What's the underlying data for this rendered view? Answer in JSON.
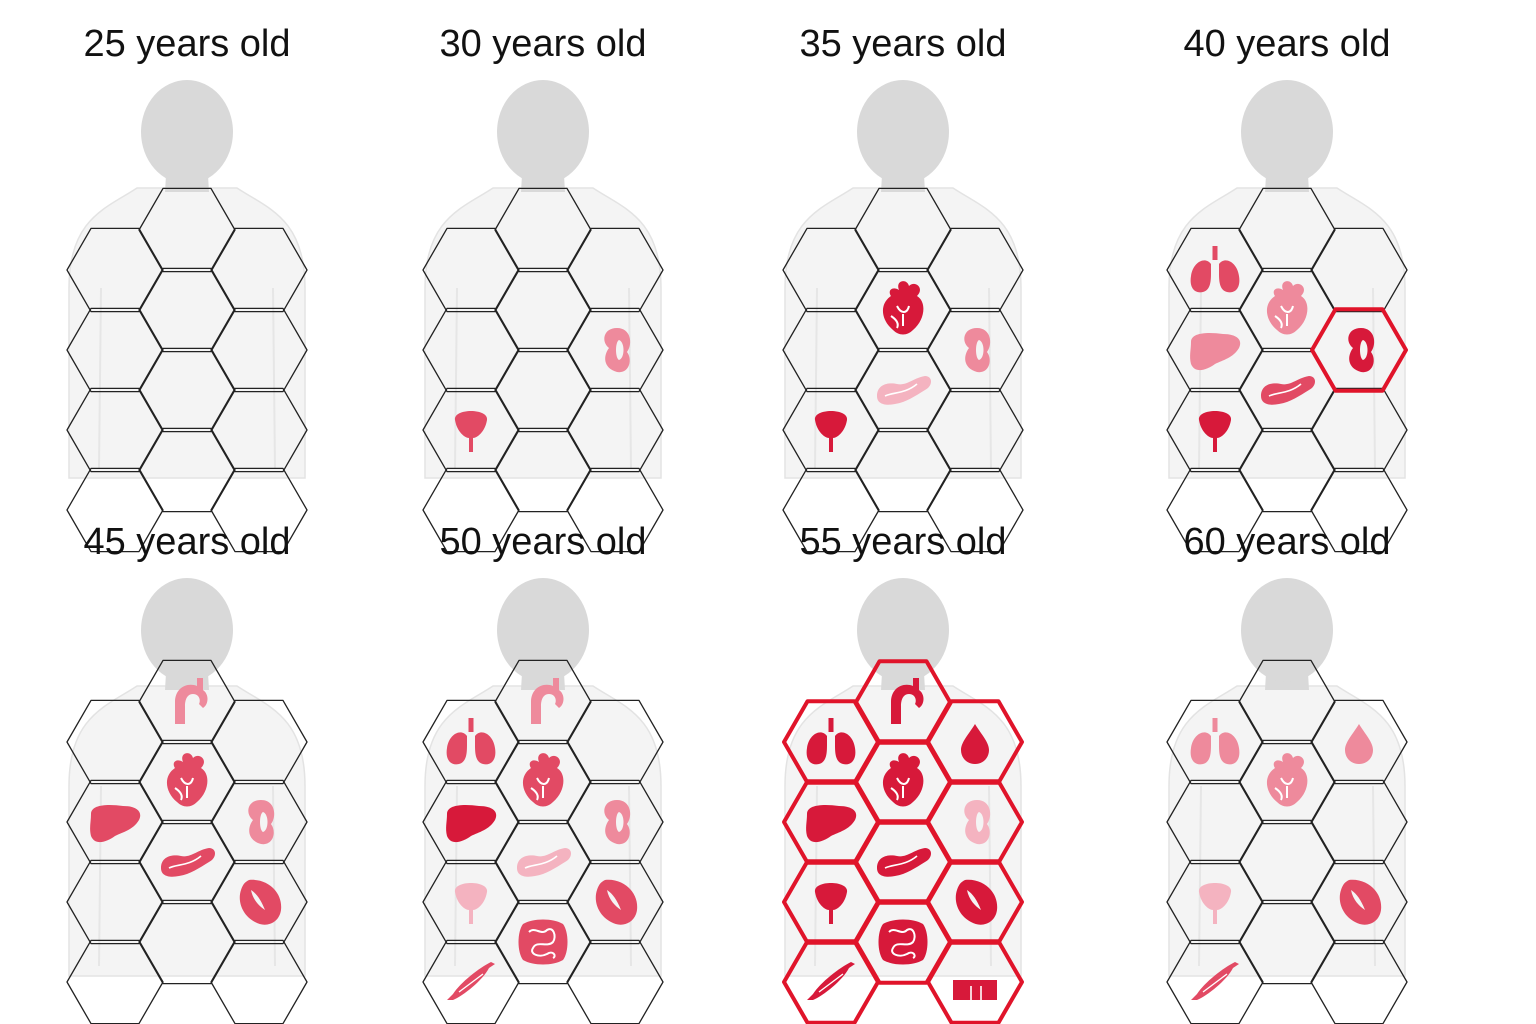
{
  "colors": {
    "organ_dark": "#d7193a",
    "organ_mid": "#e24a64",
    "organ_light": "#ee8a9c",
    "organ_pale": "#f4b3c0",
    "highlight": "#e0142a",
    "hex_stroke": "#222222",
    "silhouette": "#d9d9d9",
    "body_fill": "#f4f4f4"
  },
  "panels": [
    {
      "title": "25 years old",
      "highlighted_cells": [],
      "organs": []
    },
    {
      "title": "30 years old",
      "highlighted_cells": [],
      "organs": [
        {
          "cell": "mid-right",
          "organ": "kidney-icon",
          "shade": "organ_light"
        },
        {
          "cell": "lower-left",
          "organ": "bladder-icon",
          "shade": "organ_mid"
        }
      ]
    },
    {
      "title": "35 years old",
      "highlighted_cells": [],
      "organs": [
        {
          "cell": "upper-center",
          "organ": "heart-icon",
          "shade": "organ_dark"
        },
        {
          "cell": "mid-right",
          "organ": "kidney-icon",
          "shade": "organ_light"
        },
        {
          "cell": "mid-center",
          "organ": "pancreas-icon",
          "shade": "organ_pale"
        },
        {
          "cell": "lower-left",
          "organ": "bladder-icon",
          "shade": "organ_dark"
        }
      ]
    },
    {
      "title": "40 years old",
      "highlighted_cells": [
        "mid-right"
      ],
      "organs": [
        {
          "cell": "upper-left",
          "organ": "lungs-icon",
          "shade": "organ_mid"
        },
        {
          "cell": "upper-center",
          "organ": "heart-icon",
          "shade": "organ_light"
        },
        {
          "cell": "mid-left",
          "organ": "liver-icon",
          "shade": "organ_light"
        },
        {
          "cell": "mid-right",
          "organ": "kidney-icon",
          "shade": "organ_dark"
        },
        {
          "cell": "mid-center",
          "organ": "pancreas-icon",
          "shade": "organ_mid"
        },
        {
          "cell": "lower-left",
          "organ": "bladder-icon",
          "shade": "organ_dark"
        }
      ]
    },
    {
      "title": "45 years old",
      "highlighted_cells": [],
      "organs": [
        {
          "cell": "top",
          "organ": "aorta-icon",
          "shade": "organ_light"
        },
        {
          "cell": "upper-center",
          "organ": "heart-icon",
          "shade": "organ_mid"
        },
        {
          "cell": "mid-left",
          "organ": "liver-icon",
          "shade": "organ_mid"
        },
        {
          "cell": "mid-right",
          "organ": "kidney-icon",
          "shade": "organ_light"
        },
        {
          "cell": "mid-center",
          "organ": "pancreas-icon",
          "shade": "organ_mid"
        },
        {
          "cell": "lower-right",
          "organ": "spleen-icon",
          "shade": "organ_mid"
        }
      ]
    },
    {
      "title": "50 years old",
      "highlighted_cells": [],
      "organs": [
        {
          "cell": "top",
          "organ": "aorta-icon",
          "shade": "organ_light"
        },
        {
          "cell": "upper-left",
          "organ": "lungs-icon",
          "shade": "organ_mid"
        },
        {
          "cell": "upper-center",
          "organ": "heart-icon",
          "shade": "organ_mid"
        },
        {
          "cell": "mid-left",
          "organ": "liver-icon",
          "shade": "organ_dark"
        },
        {
          "cell": "mid-right",
          "organ": "kidney-icon",
          "shade": "organ_light"
        },
        {
          "cell": "mid-center",
          "organ": "pancreas-icon",
          "shade": "organ_pale"
        },
        {
          "cell": "lower-left",
          "organ": "bladder-icon",
          "shade": "organ_pale"
        },
        {
          "cell": "lower-right",
          "organ": "spleen-icon",
          "shade": "organ_mid"
        },
        {
          "cell": "lower-center",
          "organ": "intestine-icon",
          "shade": "organ_mid"
        },
        {
          "cell": "bottom-left",
          "organ": "muscle-icon",
          "shade": "organ_mid"
        }
      ]
    },
    {
      "title": "55 years old",
      "highlighted_cells": [
        "all"
      ],
      "organs": [
        {
          "cell": "top",
          "organ": "aorta-icon",
          "shade": "organ_dark"
        },
        {
          "cell": "upper-left",
          "organ": "lungs-icon",
          "shade": "organ_dark"
        },
        {
          "cell": "upper-right",
          "organ": "blood-drop-icon",
          "shade": "organ_dark"
        },
        {
          "cell": "upper-center",
          "organ": "heart-icon",
          "shade": "organ_dark"
        },
        {
          "cell": "mid-left",
          "organ": "liver-icon",
          "shade": "organ_dark"
        },
        {
          "cell": "mid-right",
          "organ": "kidney-icon",
          "shade": "organ_pale"
        },
        {
          "cell": "mid-center",
          "organ": "pancreas-icon",
          "shade": "organ_dark"
        },
        {
          "cell": "lower-left",
          "organ": "bladder-icon",
          "shade": "organ_dark"
        },
        {
          "cell": "lower-right",
          "organ": "spleen-icon",
          "shade": "organ_dark"
        },
        {
          "cell": "lower-center",
          "organ": "intestine-icon",
          "shade": "organ_dark"
        },
        {
          "cell": "bottom-left",
          "organ": "muscle-icon",
          "shade": "organ_dark"
        },
        {
          "cell": "bottom-right",
          "organ": "skin-icon",
          "shade": "organ_dark"
        }
      ]
    },
    {
      "title": "60 years old",
      "highlighted_cells": [],
      "organs": [
        {
          "cell": "upper-left",
          "organ": "lungs-icon",
          "shade": "organ_light"
        },
        {
          "cell": "upper-right",
          "organ": "blood-drop-icon",
          "shade": "organ_light"
        },
        {
          "cell": "upper-center",
          "organ": "heart-icon",
          "shade": "organ_light"
        },
        {
          "cell": "lower-left",
          "organ": "bladder-icon",
          "shade": "organ_pale"
        },
        {
          "cell": "lower-right",
          "organ": "spleen-icon",
          "shade": "organ_mid"
        },
        {
          "cell": "bottom-left",
          "organ": "muscle-icon",
          "shade": "organ_mid"
        }
      ]
    }
  ]
}
